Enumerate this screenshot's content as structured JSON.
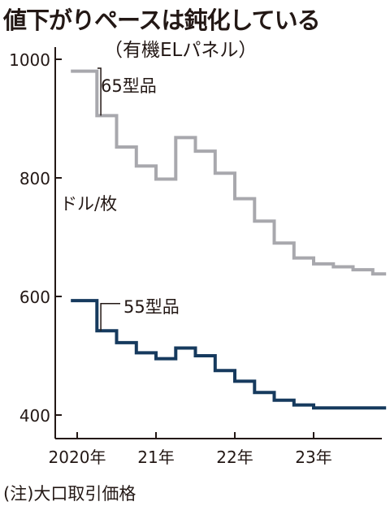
{
  "title": "値下がりペースは鈍化している",
  "subtitle": "（有機ELパネル）",
  "note": "(注)大口取引価格",
  "chart_data": {
    "type": "line",
    "step": true,
    "unit_label": "ドル/枚",
    "ylim": [
      390,
      1010
    ],
    "y_ticks": [
      400,
      600,
      800,
      1000
    ],
    "x_range": [
      2019.85,
      2023.95
    ],
    "x_ticks": [
      {
        "x": 2020.0,
        "label": "2020年"
      },
      {
        "x": 2021.0,
        "label": "21年"
      },
      {
        "x": 2022.0,
        "label": "22年"
      },
      {
        "x": 2023.0,
        "label": "23年"
      }
    ],
    "series": [
      {
        "name": "65型品",
        "color": "#a8a8ad",
        "x": [
          2019.92,
          2020.25,
          2020.5,
          2020.75,
          2021.0,
          2021.25,
          2021.5,
          2021.75,
          2022.0,
          2022.25,
          2022.5,
          2022.75,
          2023.0,
          2023.25,
          2023.5,
          2023.75
        ],
        "y": [
          980,
          905,
          852,
          820,
          798,
          868,
          845,
          808,
          765,
          727,
          690,
          665,
          655,
          650,
          645,
          638
        ]
      },
      {
        "name": "55型品",
        "color": "#163a5e",
        "x": [
          2019.92,
          2020.25,
          2020.5,
          2020.75,
          2021.0,
          2021.25,
          2021.5,
          2021.75,
          2022.0,
          2022.25,
          2022.5,
          2022.75,
          2023.0,
          2023.25,
          2023.5,
          2023.75
        ],
        "y": [
          593,
          542,
          522,
          505,
          495,
          513,
          500,
          475,
          457,
          438,
          425,
          417,
          412,
          412,
          412,
          412
        ]
      }
    ]
  }
}
